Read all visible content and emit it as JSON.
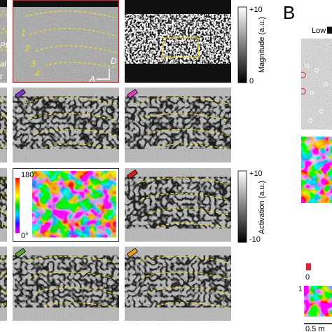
{
  "left_labels": [
    "PL",
    "al",
    "t"
  ],
  "layer_labels": [
    "1",
    "2",
    "3",
    "4"
  ],
  "axis_labels": {
    "dorsal": "D",
    "anterior": "A"
  },
  "magnitude_scale": {
    "max": "+10",
    "min": "0",
    "title": "Magnitude (a.u.)"
  },
  "activation_scale": {
    "max": "+10",
    "min": "-10",
    "title": "Activation (a.u.)"
  },
  "angle_scale": {
    "max": "180°",
    "min": "0°"
  },
  "panel_b": {
    "label": "B",
    "legend_low": "Low",
    "colorbar_max": "1",
    "bottom_cut": "0",
    "scale_bar": "0.5 m"
  }
}
